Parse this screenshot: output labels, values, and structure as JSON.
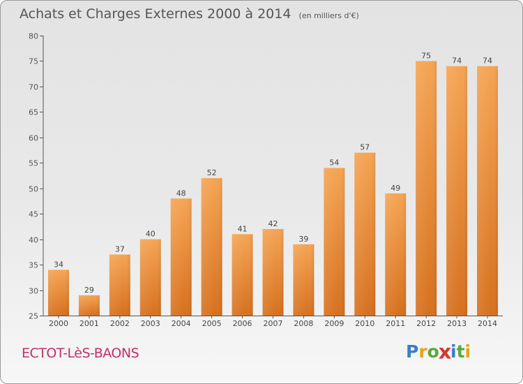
{
  "header": {
    "title": "Achats et Charges Externes 2000 à 2014",
    "unit": "(en milliers d'€)"
  },
  "footer": {
    "commune": "ECTOT-LèS-BAONS",
    "logo_letters": [
      "P",
      "r",
      "o",
      "x",
      "i",
      "t",
      "i"
    ]
  },
  "colors": {
    "bar_light": "#f5a453",
    "bar_dark": "#d6701e",
    "commune": "#c0306a",
    "logo": [
      "#3a7dcb",
      "#e9a21b",
      "#5aa83a",
      "#d8372e",
      "#3a7dcb",
      "#5aa83a",
      "#e9a21b"
    ]
  },
  "chart_data": {
    "type": "bar",
    "title": "Achats et Charges Externes 2000 à 2014",
    "subtitle": "(en milliers d'€)",
    "categories": [
      "2000",
      "2001",
      "2002",
      "2003",
      "2004",
      "2005",
      "2006",
      "2007",
      "2008",
      "2009",
      "2010",
      "2011",
      "2012",
      "2013",
      "2014"
    ],
    "values": [
      34,
      29,
      37,
      40,
      48,
      52,
      41,
      42,
      39,
      54,
      57,
      49,
      75,
      74,
      74
    ],
    "ylim": [
      25,
      80
    ],
    "yticks": [
      25,
      30,
      35,
      40,
      45,
      50,
      55,
      60,
      65,
      70,
      75,
      80
    ],
    "xlabel": "",
    "ylabel": "",
    "grid": false,
    "data_labels": true
  }
}
